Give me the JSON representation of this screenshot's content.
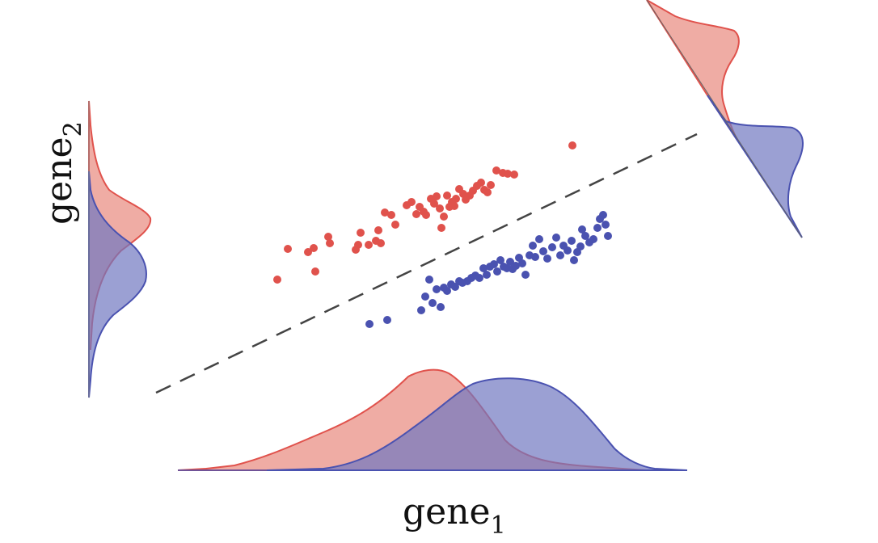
{
  "labels": {
    "x_label": "gene",
    "x_subscript": "1",
    "y_label": "gene",
    "y_subscript": "2"
  },
  "colors": {
    "red": "#e0524c",
    "red_fill": "#e8897e",
    "blue": "#4a52b0",
    "blue_fill": "#7178c0",
    "dash": "#444444"
  },
  "chart_data": {
    "type": "scatter",
    "title": "",
    "xlabel": "gene1",
    "ylabel": "gene2",
    "series": [
      {
        "color": "red",
        "points": [
          [
            343,
            346
          ],
          [
            356,
            308
          ],
          [
            381,
            312
          ],
          [
            388,
            307
          ],
          [
            390,
            336
          ],
          [
            406,
            293
          ],
          [
            408,
            301
          ],
          [
            440,
            309
          ],
          [
            443,
            303
          ],
          [
            446,
            288
          ],
          [
            456,
            303
          ],
          [
            465,
            298
          ],
          [
            468,
            285
          ],
          [
            471,
            301
          ],
          [
            476,
            263
          ],
          [
            484,
            266
          ],
          [
            489,
            278
          ],
          [
            503,
            254
          ],
          [
            509,
            250
          ],
          [
            515,
            265
          ],
          [
            519,
            256
          ],
          [
            524,
            262
          ],
          [
            527,
            266
          ],
          [
            533,
            246
          ],
          [
            537,
            252
          ],
          [
            540,
            243
          ],
          [
            544,
            258
          ],
          [
            546,
            282
          ],
          [
            549,
            268
          ],
          [
            553,
            242
          ],
          [
            556,
            256
          ],
          [
            559,
            250
          ],
          [
            562,
            255
          ],
          [
            564,
            246
          ],
          [
            568,
            234
          ],
          [
            573,
            240
          ],
          [
            576,
            247
          ],
          [
            581,
            242
          ],
          [
            585,
            236
          ],
          [
            590,
            230
          ],
          [
            595,
            226
          ],
          [
            599,
            235
          ],
          [
            603,
            238
          ],
          [
            607,
            229
          ],
          [
            614,
            211
          ],
          [
            622,
            214
          ],
          [
            628,
            215
          ],
          [
            636,
            216
          ],
          [
            708,
            180
          ]
        ]
      },
      {
        "color": "blue",
        "points": [
          [
            457,
            401
          ],
          [
            479,
            396
          ],
          [
            521,
            384
          ],
          [
            526,
            367
          ],
          [
            531,
            346
          ],
          [
            535,
            375
          ],
          [
            540,
            358
          ],
          [
            545,
            380
          ],
          [
            549,
            356
          ],
          [
            553,
            360
          ],
          [
            558,
            352
          ],
          [
            563,
            355
          ],
          [
            568,
            348
          ],
          [
            572,
            350
          ],
          [
            578,
            348
          ],
          [
            583,
            344
          ],
          [
            588,
            341
          ],
          [
            593,
            344
          ],
          [
            598,
            332
          ],
          [
            602,
            340
          ],
          [
            606,
            330
          ],
          [
            611,
            327
          ],
          [
            615,
            336
          ],
          [
            619,
            322
          ],
          [
            623,
            330
          ],
          [
            627,
            332
          ],
          [
            631,
            324
          ],
          [
            634,
            333
          ],
          [
            638,
            329
          ],
          [
            642,
            319
          ],
          [
            646,
            326
          ],
          [
            650,
            340
          ],
          [
            655,
            316
          ],
          [
            659,
            304
          ],
          [
            662,
            318
          ],
          [
            667,
            296
          ],
          [
            672,
            311
          ],
          [
            677,
            320
          ],
          [
            683,
            306
          ],
          [
            688,
            294
          ],
          [
            693,
            316
          ],
          [
            697,
            304
          ],
          [
            702,
            310
          ],
          [
            707,
            298
          ],
          [
            710,
            322
          ],
          [
            714,
            312
          ],
          [
            718,
            305
          ],
          [
            720,
            284
          ],
          [
            724,
            292
          ],
          [
            729,
            300
          ],
          [
            734,
            296
          ],
          [
            739,
            282
          ],
          [
            742,
            271
          ],
          [
            746,
            266
          ],
          [
            749,
            278
          ],
          [
            752,
            292
          ]
        ]
      }
    ],
    "decision_boundary": {
      "style": "dashed"
    },
    "marginal_densities": [
      "gene1",
      "gene2",
      "projection"
    ]
  }
}
